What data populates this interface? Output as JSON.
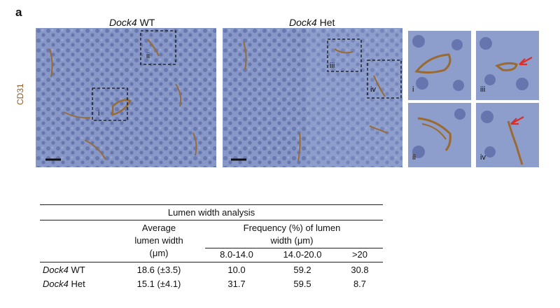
{
  "figure": {
    "panel_letter": "a",
    "header_wt": {
      "gene": "Dock4",
      "genotype": "WT"
    },
    "header_het": {
      "gene": "Dock4",
      "genotype": "Het"
    },
    "y_axis_label": "CD31",
    "inset_labels_main_wt": [
      "ii",
      "i"
    ],
    "inset_labels_main_het": [
      "iii",
      "iv"
    ],
    "zoom_labels": [
      "i",
      "iii",
      "ii",
      "iv"
    ]
  },
  "table": {
    "title": "Lumen width analysis",
    "col_avg": [
      "Average",
      "lumen width",
      "(μm)"
    ],
    "col_freq": [
      "Frequency (%) of lumen",
      "width (μm)"
    ],
    "bins": [
      "8.0-14.0",
      "14.0-20.0",
      ">20"
    ],
    "rows": [
      {
        "gene": "Dock4",
        "genotype": "WT",
        "avg": "18.6 (±3.5)",
        "f1": "10.0",
        "f2": "59.2",
        "f3": "30.8"
      },
      {
        "gene": "Dock4",
        "genotype": "Het",
        "avg": "15.1 (±4.1)",
        "f1": "31.7",
        "f2": "59.5",
        "f3": "8.7"
      }
    ]
  },
  "colors": {
    "tissue": "#7f8fbf",
    "vessel": "#9a6a2e",
    "arrow": "#d9302c"
  }
}
